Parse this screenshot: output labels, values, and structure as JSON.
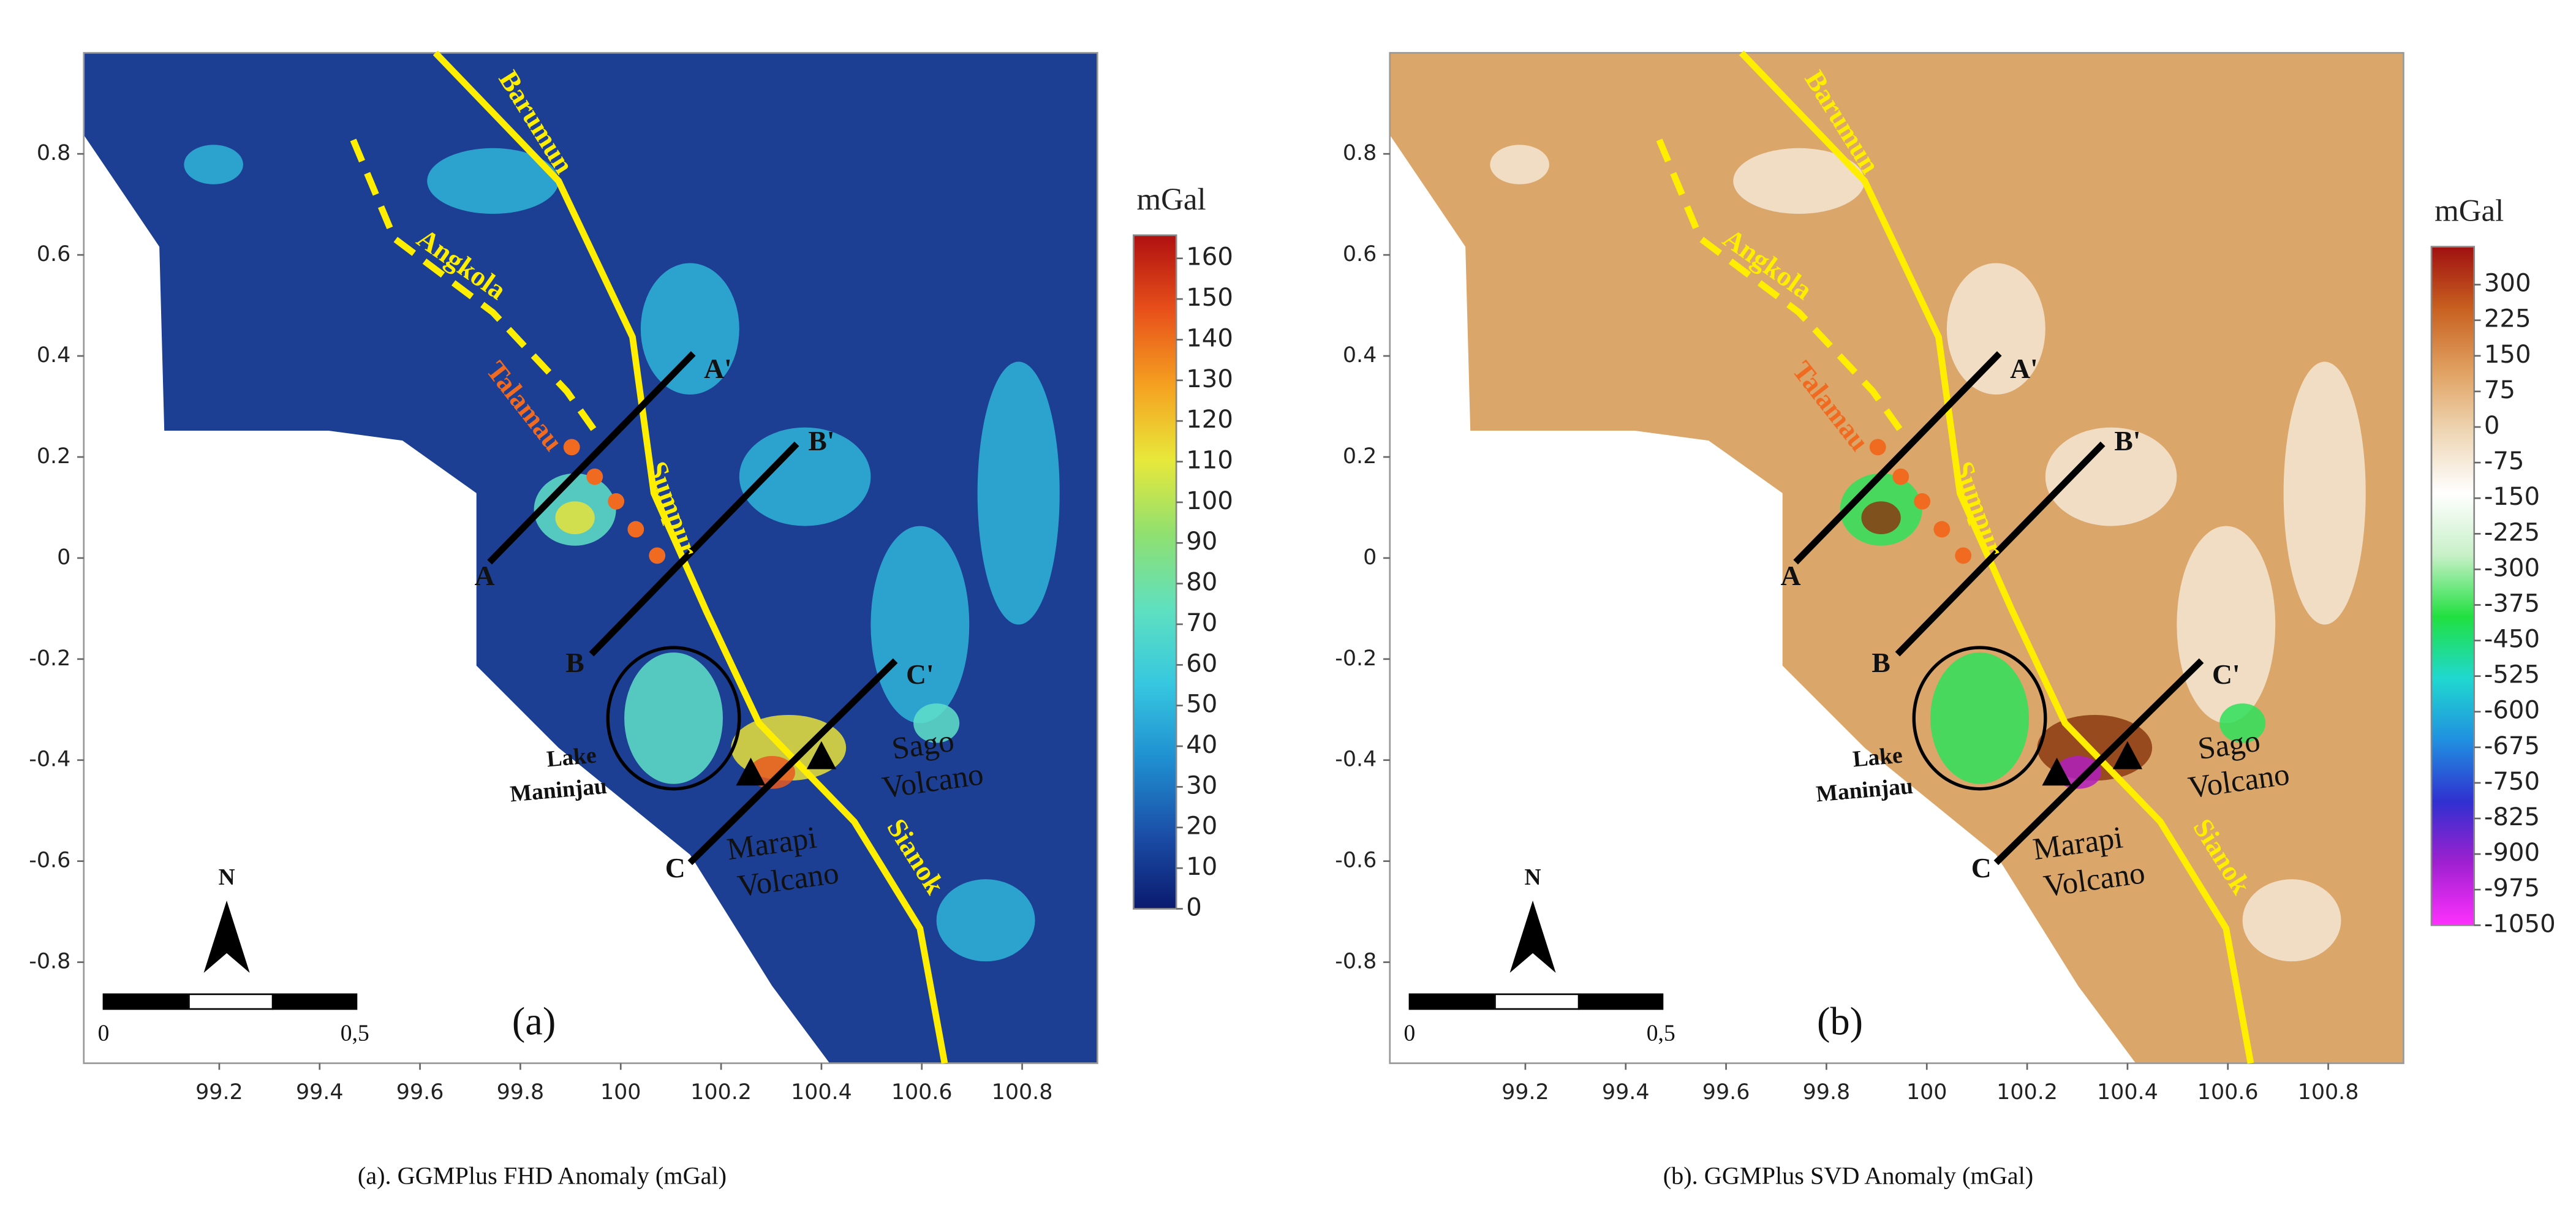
{
  "panels": [
    {
      "caption": "(a). GGMPlus FHD Anomaly (mGal)",
      "tag": "(a)",
      "xlim": [
        98.93,
        100.95
      ],
      "ylim": [
        -1,
        1
      ],
      "xticks": [
        99.2,
        99.4,
        99.6,
        99.8,
        100,
        100.2,
        100.4,
        100.6,
        100.8
      ],
      "yticks": [
        -0.8,
        -0.6,
        -0.4,
        -0.2,
        0,
        0.2,
        0.4,
        0.6,
        0.8
      ],
      "land_color": "#1c3f93",
      "blob_colors": [
        "#2fb5d8",
        "#5fe0c8",
        "#e8e23a",
        "#e85a20"
      ],
      "colorbar": {
        "unit": "mGal",
        "range": [
          0,
          165.7
        ],
        "ticks": [
          0,
          10,
          20,
          30,
          40,
          50,
          60,
          70,
          80,
          90,
          100,
          110,
          120,
          130,
          140,
          150,
          160
        ],
        "colors": [
          "#0a1a6e",
          "#1b4fa8",
          "#1f8fd0",
          "#36c7e0",
          "#5ee0c0",
          "#8fe070",
          "#e8e83a",
          "#f5a020",
          "#e8501a",
          "#b01010"
        ]
      },
      "faults": [
        "Barumun",
        "Angkola",
        "Talamau",
        "Sumpur",
        "Sianok"
      ],
      "profiles": [
        "A",
        "A'",
        "B",
        "B'",
        "C",
        "C'"
      ],
      "lake": [
        "Lake",
        "Maninjau"
      ],
      "sago": [
        "Sago",
        "Volcano"
      ],
      "marapi": [
        "Marapi",
        "Volcano"
      ],
      "north": "N",
      "scale": [
        "0",
        "0,5"
      ]
    },
    {
      "caption": "(b). GGMPlus SVD Anomaly (mGal)",
      "tag": "(b)",
      "xlim": [
        98.93,
        100.95
      ],
      "ylim": [
        -1,
        1
      ],
      "xticks": [
        99.2,
        99.4,
        99.6,
        99.8,
        100,
        100.2,
        100.4,
        100.6,
        100.8
      ],
      "yticks": [
        -0.8,
        -0.6,
        -0.4,
        -0.2,
        0,
        0.2,
        0.4,
        0.6,
        0.8
      ],
      "land_color": "#dba66a",
      "blob_colors": [
        "#f3e6d4",
        "#2de05a",
        "#8a3a10",
        "#b01fc0"
      ],
      "colorbar": {
        "unit": "mGal",
        "range": [
          -1050,
          380
        ],
        "ticks": [
          300,
          225,
          150,
          75,
          0,
          -75,
          -150,
          -225,
          -300,
          -375,
          -450,
          -525,
          -600,
          -675,
          -750,
          -825,
          -900,
          -975,
          -1050
        ],
        "colors": [
          "#ff30ff",
          "#a020d0",
          "#3030d0",
          "#2090e0",
          "#20d8d0",
          "#20e040",
          "#c8f0c8",
          "#ffffff",
          "#eed6b4",
          "#e0a060",
          "#c86020",
          "#a01010"
        ]
      },
      "faults": [
        "Barumun",
        "Angkola",
        "Talamau",
        "Sumpur",
        "Sianok"
      ],
      "profiles": [
        "A",
        "A'",
        "B",
        "B'",
        "C",
        "C'"
      ],
      "lake": [
        "Lake",
        "Maninjau"
      ],
      "sago": [
        "Sago",
        "Volcano"
      ],
      "marapi": [
        "Marapi",
        "Volcano"
      ],
      "north": "N",
      "scale": [
        "0",
        "0,5"
      ]
    }
  ]
}
